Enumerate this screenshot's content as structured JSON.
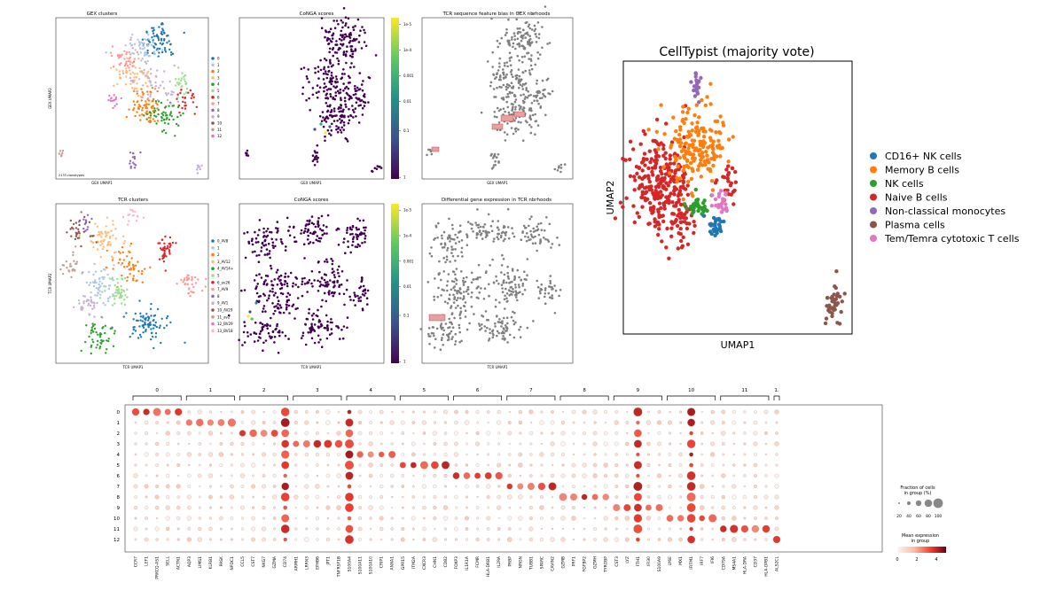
{
  "chart_data": [
    {
      "type": "scatter",
      "panel": "gex_clusters",
      "title": "GEX clusters",
      "xlabel": "GEX UMAP1",
      "ylabel": "GEX UMAP2",
      "annotation": "2133 clonotypes",
      "legend": [
        "0",
        "1",
        "2",
        "3",
        "4",
        "5",
        "6",
        "7",
        "8",
        "9",
        "10",
        "11",
        "12"
      ]
    },
    {
      "type": "scatter",
      "panel": "gex_conga",
      "title": "CoNGA scores",
      "xlabel": "GEX UMAP1",
      "colorbar_ticks": [
        "1e-5",
        "1e-4",
        "0.001",
        "0.01",
        "0.1",
        "1"
      ]
    },
    {
      "type": "scatter",
      "panel": "gex_tcr_bias",
      "title": "TCR sequence feature bias in GEX nbrhoods",
      "xlabel": "GEX UMAP1"
    },
    {
      "type": "scatter",
      "panel": "tcr_clusters",
      "title": "TCR clusters",
      "xlabel": "TCR UMAP1",
      "ylabel": "TCR UMAP2",
      "legend": [
        "0_AV8",
        "1",
        "2",
        "3_AV12",
        "4_AV14+",
        "5",
        "6_av26",
        "7_AV9",
        "8",
        "9_AV1",
        "10_AV29",
        "11_av2",
        "12_BV29",
        "13_BV18"
      ]
    },
    {
      "type": "scatter",
      "panel": "tcr_conga",
      "title": "CoNGA scores",
      "xlabel": "TCR UMAP1",
      "colorbar_ticks": [
        "1e-5",
        "1e-4",
        "0.001",
        "0.01",
        "0.1",
        "1"
      ]
    },
    {
      "type": "scatter",
      "panel": "tcr_dge",
      "title": "Differential gene expression in TCR nbrhoods",
      "xlabel": "TCR UMAP1"
    },
    {
      "type": "scatter",
      "panel": "celltypist",
      "title": "CellTypist (majority vote)",
      "xlabel": "UMAP1",
      "ylabel": "UMAP2",
      "legend": [
        {
          "name": "CD16+ NK cells",
          "color": "#1f77b4"
        },
        {
          "name": "Memory B cells",
          "color": "#ff7f0e"
        },
        {
          "name": "NK cells",
          "color": "#2ca02c"
        },
        {
          "name": "Naive B cells",
          "color": "#d62728"
        },
        {
          "name": "Non-classical monocytes",
          "color": "#9467bd"
        },
        {
          "name": "Plasma cells",
          "color": "#8c564b"
        },
        {
          "name": "Tem/Temra cytotoxic T cells",
          "color": "#e377c2"
        }
      ]
    },
    {
      "type": "dotplot",
      "panel": "marker_genes",
      "rows": [
        "0",
        "1",
        "2",
        "3",
        "4",
        "5",
        "6",
        "7",
        "8",
        "9",
        "10",
        "11",
        "12"
      ],
      "groups": [
        {
          "label": "0",
          "genes": [
            "CCR7",
            "LEF1",
            "PRKCQ-AS1",
            "SELL",
            "ACTN1"
          ]
        },
        {
          "label": "1",
          "genes": [
            "AQP3",
            "LIMS1",
            "KLRB1",
            "PASK",
            "NPDC1"
          ]
        },
        {
          "label": "2",
          "genes": [
            "CCL5",
            "CST7",
            "NKG7",
            "GZMA",
            "CD74"
          ]
        },
        {
          "label": "3",
          "genes": [
            "ARMH1",
            "LRRN3",
            "EPHB6",
            "JPT1",
            "TNFRSF1B"
          ]
        },
        {
          "label": "4",
          "genes": [
            "S100A4",
            "S100A11",
            "S100A10",
            "CRIP1",
            "ANXA1"
          ]
        },
        {
          "label": "5",
          "genes": [
            "GPR15",
            "ITM2A",
            "CXCR3",
            "CHN1",
            "CD82"
          ]
        },
        {
          "label": "6",
          "genes": [
            "FOXP3",
            "IL1R1A",
            "FCMR",
            "HLA-DRB1",
            "IL2RA"
          ]
        },
        {
          "label": "7",
          "genes": [
            "PRBP",
            "NRGN",
            "TUBB1",
            "SPARC",
            "CAVIN2"
          ]
        },
        {
          "label": "8",
          "genes": [
            "GZMB",
            "PRF1",
            "FGFBP2",
            "GZMH",
            "TYROBP"
          ]
        },
        {
          "label": "9",
          "genes": [
            "CST3",
            "LYZ",
            "FTH1",
            "IFI30",
            "S100A9"
          ]
        },
        {
          "label": "10",
          "genes": [
            "LY6E",
            "MX1",
            "IFITM1",
            "IRF7",
            "IFI6"
          ]
        },
        {
          "label": "11",
          "genes": [
            "CD79A",
            "MS4A1",
            "HLA-DRA",
            "CD37",
            "HLA-DPB1"
          ]
        },
        {
          "label": "1.",
          "genes": [
            "ALS2CL"
          ]
        }
      ],
      "size_legend": {
        "title": "Fraction of cells\nin group (%)",
        "ticks": [
          "20",
          "40",
          "60",
          "80",
          "100"
        ]
      },
      "color_legend": {
        "title": "Mean expression\nin group",
        "ticks": [
          "0",
          "2",
          "4"
        ]
      }
    }
  ]
}
